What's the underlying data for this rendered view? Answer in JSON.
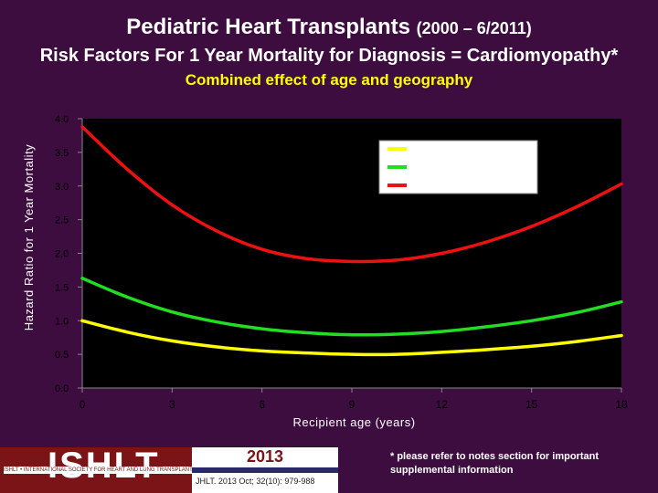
{
  "header": {
    "title_main": "Pediatric Heart Transplants",
    "title_years": "(2000 – 6/2011)",
    "subtitle": "Risk Factors For 1 Year Mortality for Diagnosis = Cardiomyopathy*",
    "combined": "Combined effect of age and geography"
  },
  "chart_data": {
    "type": "line",
    "title": "Combined effect of age and geography",
    "xlabel": "Recipient age (years)",
    "ylabel": "Hazard Ratio for 1 Year Mortality",
    "xlim": [
      0,
      18
    ],
    "ylim": [
      0,
      4
    ],
    "x_ticks": [
      0,
      3,
      6,
      9,
      12,
      15,
      18
    ],
    "y_ticks": [
      "0.0",
      "0.5",
      "1.0",
      "1.5",
      "2.0",
      "2.5",
      "3.0",
      "3.5",
      "4.0"
    ],
    "legend_position": "top-right",
    "series": [
      {
        "name": "",
        "color": "#ffff00",
        "x": [
          0,
          1.5,
          3,
          4.5,
          6,
          7.5,
          9,
          10.5,
          12,
          13.5,
          15,
          16.5,
          18
        ],
        "values": [
          1.0,
          0.83,
          0.7,
          0.61,
          0.55,
          0.52,
          0.5,
          0.5,
          0.53,
          0.57,
          0.62,
          0.69,
          0.78
        ]
      },
      {
        "name": "",
        "color": "#22dd22",
        "x": [
          0,
          1.5,
          3,
          4.5,
          6,
          7.5,
          9,
          10.5,
          12,
          13.5,
          15,
          16.5,
          18
        ],
        "values": [
          1.63,
          1.35,
          1.13,
          0.98,
          0.88,
          0.82,
          0.79,
          0.8,
          0.84,
          0.91,
          1.0,
          1.12,
          1.28
        ]
      },
      {
        "name": "",
        "color": "#ee1111",
        "x": [
          0,
          1.5,
          3,
          4.5,
          6,
          7.5,
          9,
          10.5,
          12,
          13.5,
          15,
          16.5,
          18
        ],
        "values": [
          3.88,
          3.25,
          2.72,
          2.33,
          2.06,
          1.92,
          1.88,
          1.9,
          2.0,
          2.17,
          2.4,
          2.69,
          3.03
        ]
      }
    ]
  },
  "footer": {
    "logo_text": "ISHLT",
    "logo_tagline": "ISHLT • INTERNATIONAL SOCIETY FOR HEART AND LUNG TRANSPLANTATION",
    "year": "2013",
    "citation": "JHLT. 2013 Oct; 32(10): 979-988",
    "note": "* please refer to notes section for important supplemental information"
  },
  "colors": {
    "background": "#3d0d3f",
    "plot_background": "#000000",
    "brand_red": "#7a1417"
  }
}
